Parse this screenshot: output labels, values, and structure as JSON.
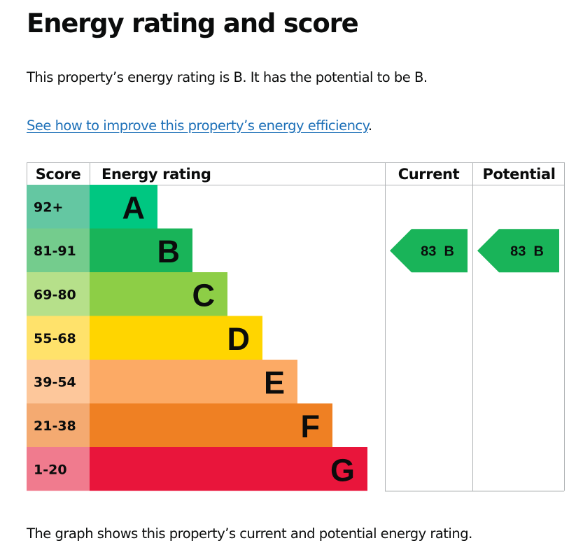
{
  "page": {
    "title": "Energy rating and score",
    "summary": "This property’s energy rating is B. It has the potential to be B.",
    "improve_link": "See how to improve this property’s energy efficiency",
    "improve_suffix": ".",
    "footnote": "The graph shows this property’s current and potential energy rating."
  },
  "chart_data": {
    "type": "bar",
    "headers": {
      "score": "Score",
      "rating": "Energy rating",
      "current": "Current",
      "potential": "Potential"
    },
    "bands": [
      {
        "letter": "A",
        "range": "92+",
        "color": "#00c781",
        "score_color": "#64c7a2"
      },
      {
        "letter": "B",
        "range": "81-91",
        "color": "#19b459",
        "score_color": "#74cc8d"
      },
      {
        "letter": "C",
        "range": "69-80",
        "color": "#8dce46",
        "score_color": "#b6e08a"
      },
      {
        "letter": "D",
        "range": "55-68",
        "color": "#ffd500",
        "score_color": "#ffe26b"
      },
      {
        "letter": "E",
        "range": "39-54",
        "color": "#fcaa65",
        "score_color": "#fdc79b"
      },
      {
        "letter": "F",
        "range": "21-38",
        "color": "#ef8023",
        "score_color": "#f4aa71"
      },
      {
        "letter": "G",
        "range": "1-20",
        "color": "#e9153b",
        "score_color": "#f07b8e"
      }
    ],
    "current": {
      "score": "83",
      "band": "B",
      "color": "#19b459"
    },
    "potential": {
      "score": "83",
      "band": "B",
      "color": "#19b459"
    }
  }
}
